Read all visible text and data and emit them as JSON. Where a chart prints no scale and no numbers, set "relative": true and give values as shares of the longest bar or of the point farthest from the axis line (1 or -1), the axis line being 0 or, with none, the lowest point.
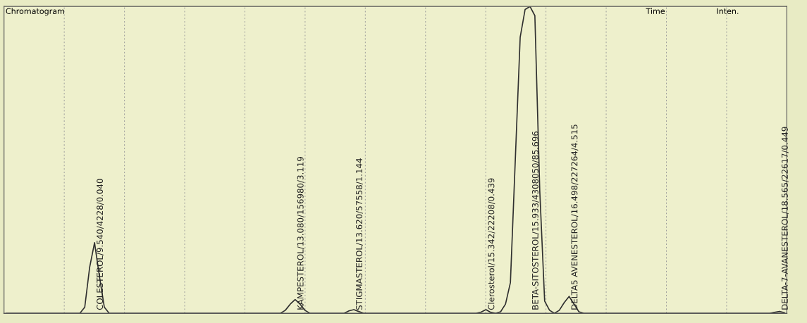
{
  "chart_data": {
    "type": "line",
    "relative": true,
    "grid": true,
    "color": "#2f2f2f",
    "title": "Chromatogram",
    "annotations": [
      "COLESTEROL/9.540/4228/0.040",
      "KAMPESTEROL/13.080/156980/3.119",
      "STIGMASTEROL/13.620/57558/1.144",
      "Clerosterol/15.342/22208/0.439",
      "BETA-SITOSTEROL/15.933/4308050/85.696",
      "DELTA5 AVENESTEROL/16.498/227264/4.515",
      "DELTA-7-AVANESTEROL/18.565/22617/0.449",
      "Time",
      "Inten."
    ],
    "categories": [
      null,
      null,
      null,
      null,
      null,
      null,
      null,
      null,
      null,
      null,
      null,
      null,
      null,
      null,
      null,
      null,
      null,
      null,
      null,
      null,
      null,
      null,
      null,
      null,
      null,
      null,
      null,
      null,
      null,
      null,
      null,
      null,
      null,
      null,
      null,
      null,
      null,
      null,
      null,
      null,
      null,
      null,
      null,
      null,
      null,
      null,
      null,
      null,
      null,
      null,
      null,
      null,
      null,
      null,
      null,
      null,
      null,
      null,
      null,
      null,
      null,
      null,
      null,
      null,
      null,
      null,
      null,
      null,
      null,
      null,
      null,
      null,
      null,
      null,
      null,
      null,
      null,
      null,
      null,
      null,
      null,
      null,
      null,
      null,
      null,
      null,
      null,
      null,
      null,
      null,
      null,
      null,
      null,
      null,
      null,
      null,
      null,
      null,
      null,
      null,
      null,
      null,
      null,
      null,
      null,
      null,
      null,
      null,
      null,
      null,
      null,
      null,
      null,
      null,
      null,
      null,
      null,
      null,
      null,
      null,
      null,
      null,
      null,
      null,
      null,
      null,
      null,
      null,
      null,
      null,
      null,
      null,
      null,
      null,
      null,
      null,
      null,
      null,
      null,
      null,
      null,
      null,
      null,
      null,
      null,
      null,
      null,
      null,
      null,
      null,
      null,
      null,
      null,
      null,
      null,
      null,
      null,
      null,
      null,
      null
    ],
    "values": [
      0,
      0,
      0,
      0,
      0,
      0,
      0,
      0,
      0,
      0,
      0,
      0,
      0,
      0,
      0,
      0,
      0.02,
      0.15,
      0.23,
      0.12,
      0.02,
      0,
      0,
      0,
      0,
      0,
      0,
      0,
      0,
      0,
      0,
      0,
      0,
      0,
      0,
      0,
      0,
      0,
      0,
      0,
      0,
      0,
      0,
      0,
      0,
      0,
      0,
      0,
      0,
      0,
      0,
      0,
      0,
      0,
      0,
      0,
      0,
      0.01,
      0.03,
      0.045,
      0.03,
      0.01,
      0,
      0,
      0,
      0,
      0,
      0,
      0,
      0,
      0.008,
      0.012,
      0.006,
      0,
      0,
      0,
      0,
      0,
      0,
      0,
      0,
      0,
      0,
      0,
      0,
      0,
      0,
      0,
      0,
      0,
      0,
      0,
      0,
      0,
      0,
      0,
      0,
      0.004,
      0.012,
      0.003,
      0,
      0.005,
      0.03,
      0.1,
      0.5,
      0.9,
      0.99,
      1,
      0.97,
      0.4,
      0.04,
      0.01,
      0,
      0.01,
      0.035,
      0.055,
      0.03,
      0.005,
      0,
      0,
      0,
      0,
      0,
      0,
      0,
      0,
      0,
      0,
      0,
      0,
      0,
      0,
      0,
      0,
      0,
      0,
      0,
      0,
      0,
      0,
      0,
      0,
      0,
      0,
      0,
      0,
      0,
      0,
      0,
      0,
      0,
      0,
      0,
      0,
      0,
      0,
      0,
      0.003,
      0.006,
      0.002
    ]
  }
}
